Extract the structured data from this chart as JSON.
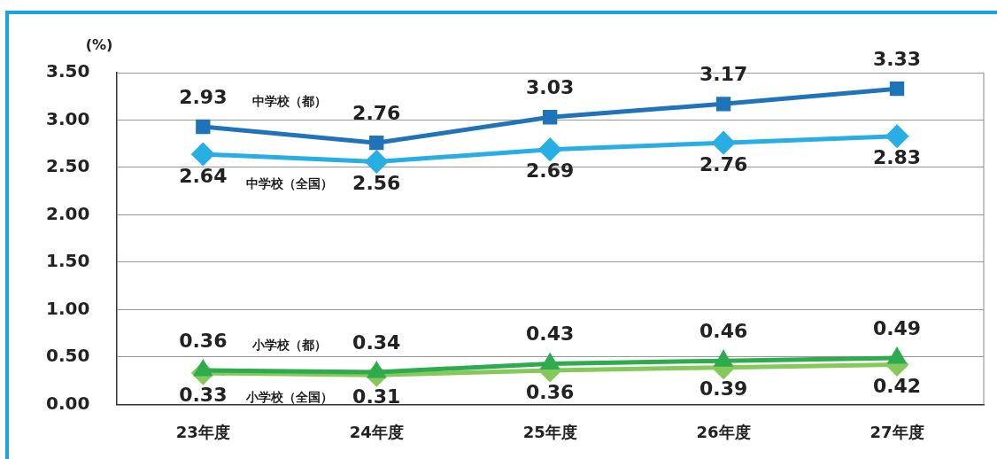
{
  "chart_data": {
    "type": "line",
    "ylabel": "(%)",
    "categories": [
      "23年度",
      "24年度",
      "25年度",
      "26年度",
      "27年度"
    ],
    "ylim": [
      0,
      3.5
    ],
    "yticks": [
      {
        "value": 0,
        "label": "0.00"
      },
      {
        "value": 0.5,
        "label": "0.50"
      },
      {
        "value": 1,
        "label": "1.00"
      },
      {
        "value": 1.5,
        "label": "1.50"
      },
      {
        "value": 2,
        "label": "2.00"
      },
      {
        "value": 2.5,
        "label": "2.50"
      },
      {
        "value": 3,
        "label": "3.00"
      },
      {
        "value": 3.5,
        "label": "3.50"
      }
    ],
    "grid": "y",
    "legend": false,
    "data_labels": true,
    "line_style": "solid",
    "series": [
      {
        "name": "中学校（都）",
        "color": "#1f74b9",
        "marker": "square",
        "values": [
          2.93,
          2.76,
          3.03,
          3.17,
          3.33
        ]
      },
      {
        "name": "中学校（全国）",
        "color": "#29aee4",
        "marker": "diamond",
        "values": [
          2.64,
          2.56,
          2.69,
          2.76,
          2.83
        ]
      },
      {
        "name": "小学校（都）",
        "color": "#2eaa4f",
        "marker": "triangle",
        "values": [
          0.36,
          0.34,
          0.43,
          0.46,
          0.49
        ]
      },
      {
        "name": "小学校（全国）",
        "color": "#86c95a",
        "marker": "diamond",
        "values": [
          0.33,
          0.31,
          0.36,
          0.39,
          0.42
        ]
      }
    ]
  }
}
